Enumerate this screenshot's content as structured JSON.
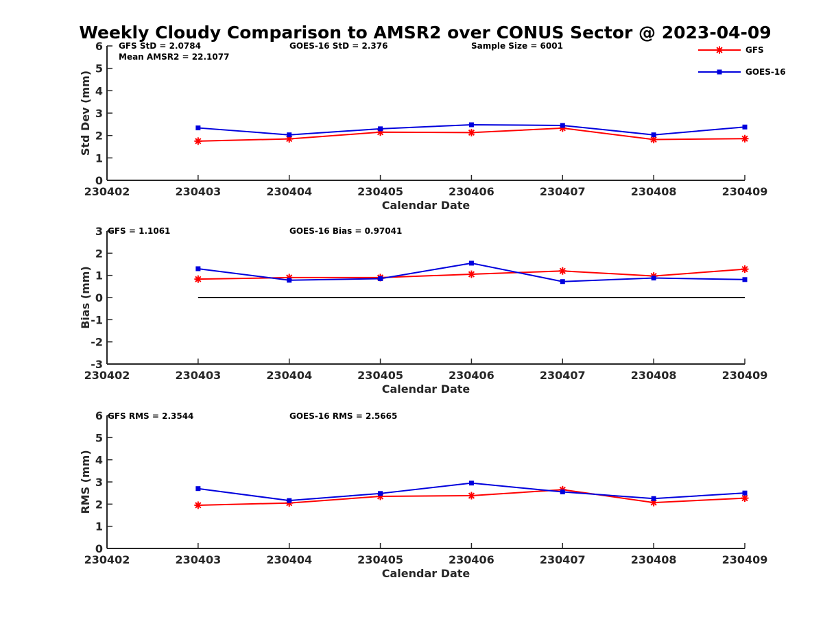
{
  "title": "Weekly Cloudy Comparison to AMSR2 over CONUS Sector @ 2023-04-09",
  "colors": {
    "GFS": "#ff0000",
    "GOES-16": "#0000dd",
    "zero_line": "#000000"
  },
  "legend": {
    "placement": "top-right",
    "items": [
      {
        "name": "GFS",
        "marker": "asterisk"
      },
      {
        "name": "GOES-16",
        "marker": "square"
      }
    ]
  },
  "chart_data": [
    {
      "type": "line",
      "xlabel": "Calendar Date",
      "ylabel": "Std Dev (mm)",
      "x_ticks": [
        "230402",
        "230403",
        "230404",
        "230405",
        "230406",
        "230407",
        "230408",
        "230409"
      ],
      "x": [
        "230403",
        "230404",
        "230405",
        "230406",
        "230407",
        "230408",
        "230409"
      ],
      "ylim": [
        0,
        6
      ],
      "y_ticks": [
        "0",
        "1",
        "2",
        "3",
        "4",
        "5",
        "6"
      ],
      "series": [
        {
          "name": "GFS",
          "values": [
            1.75,
            1.85,
            2.15,
            2.13,
            2.33,
            1.82,
            1.86
          ]
        },
        {
          "name": "GOES-16",
          "values": [
            2.34,
            2.03,
            2.3,
            2.48,
            2.45,
            2.03,
            2.38
          ]
        }
      ],
      "annotations": [
        "GFS StD = 2.0784",
        "Mean AMSR2 = 22.1077",
        "GOES-16 StD = 2.376",
        "Sample Size = 6001"
      ]
    },
    {
      "type": "line",
      "xlabel": "Calendar Date",
      "ylabel": "Bias (mm)",
      "x_ticks": [
        "230402",
        "230403",
        "230404",
        "230405",
        "230406",
        "230407",
        "230408",
        "230409"
      ],
      "x": [
        "230403",
        "230404",
        "230405",
        "230406",
        "230407",
        "230408",
        "230409"
      ],
      "ylim": [
        -3,
        3
      ],
      "y_ticks": [
        "-3",
        "-2",
        "-1",
        "0",
        "1",
        "2",
        "3"
      ],
      "zero_line": true,
      "series": [
        {
          "name": "GFS",
          "values": [
            0.83,
            0.9,
            0.9,
            1.05,
            1.2,
            0.97,
            1.28
          ]
        },
        {
          "name": "GOES-16",
          "values": [
            1.3,
            0.78,
            0.85,
            1.55,
            0.72,
            0.88,
            0.81
          ]
        }
      ],
      "annotations": [
        "GFS = 1.1061",
        "GOES-16 Bias  = 0.97041"
      ]
    },
    {
      "type": "line",
      "xlabel": "Calendar Date",
      "ylabel": "RMS (mm)",
      "x_ticks": [
        "230402",
        "230403",
        "230404",
        "230405",
        "230406",
        "230407",
        "230408",
        "230409"
      ],
      "x": [
        "230403",
        "230404",
        "230405",
        "230406",
        "230407",
        "230408",
        "230409"
      ],
      "ylim": [
        0,
        6
      ],
      "y_ticks": [
        "0",
        "1",
        "2",
        "3",
        "4",
        "5",
        "6"
      ],
      "series": [
        {
          "name": "GFS",
          "values": [
            1.95,
            2.05,
            2.35,
            2.38,
            2.65,
            2.07,
            2.27
          ]
        },
        {
          "name": "GOES-16",
          "values": [
            2.7,
            2.16,
            2.48,
            2.95,
            2.55,
            2.25,
            2.5
          ]
        }
      ],
      "annotations": [
        "GFS RMS = 2.3544",
        "GOES-16 RMS = 2.5665"
      ]
    }
  ]
}
